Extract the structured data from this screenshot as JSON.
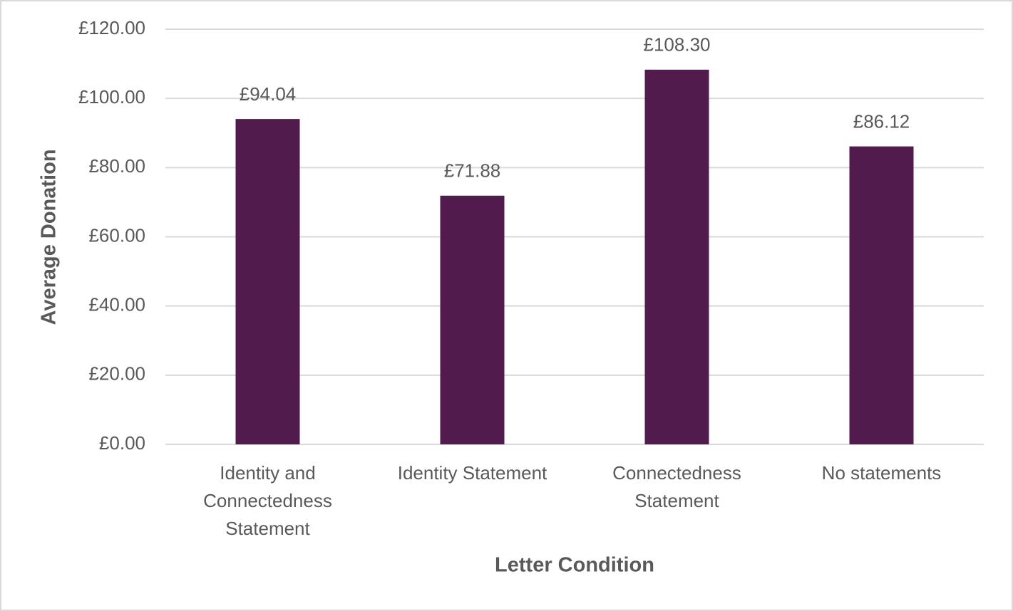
{
  "chart_data": {
    "type": "bar",
    "x_label": "Letter Condition",
    "y_label": "Average Donation",
    "categories": [
      "Identity and Connectedness Statement",
      "Identity Statement",
      "Connectedness Statement",
      "No statements"
    ],
    "values": [
      94.04,
      71.88,
      108.3,
      86.12
    ],
    "value_labels": [
      "£94.04",
      "£71.88",
      "£108.30",
      "£86.12"
    ],
    "color": "#521b4e",
    "ylim": [
      0,
      120
    ],
    "yticks": [
      {
        "value": 0,
        "label": "£0.00"
      },
      {
        "value": 20,
        "label": "£20.00"
      },
      {
        "value": 40,
        "label": "£40.00"
      },
      {
        "value": 60,
        "label": "£60.00"
      },
      {
        "value": 80,
        "label": "£80.00"
      },
      {
        "value": 100,
        "label": "£100.00"
      },
      {
        "value": 120,
        "label": "£120.00"
      }
    ],
    "grid": true
  }
}
